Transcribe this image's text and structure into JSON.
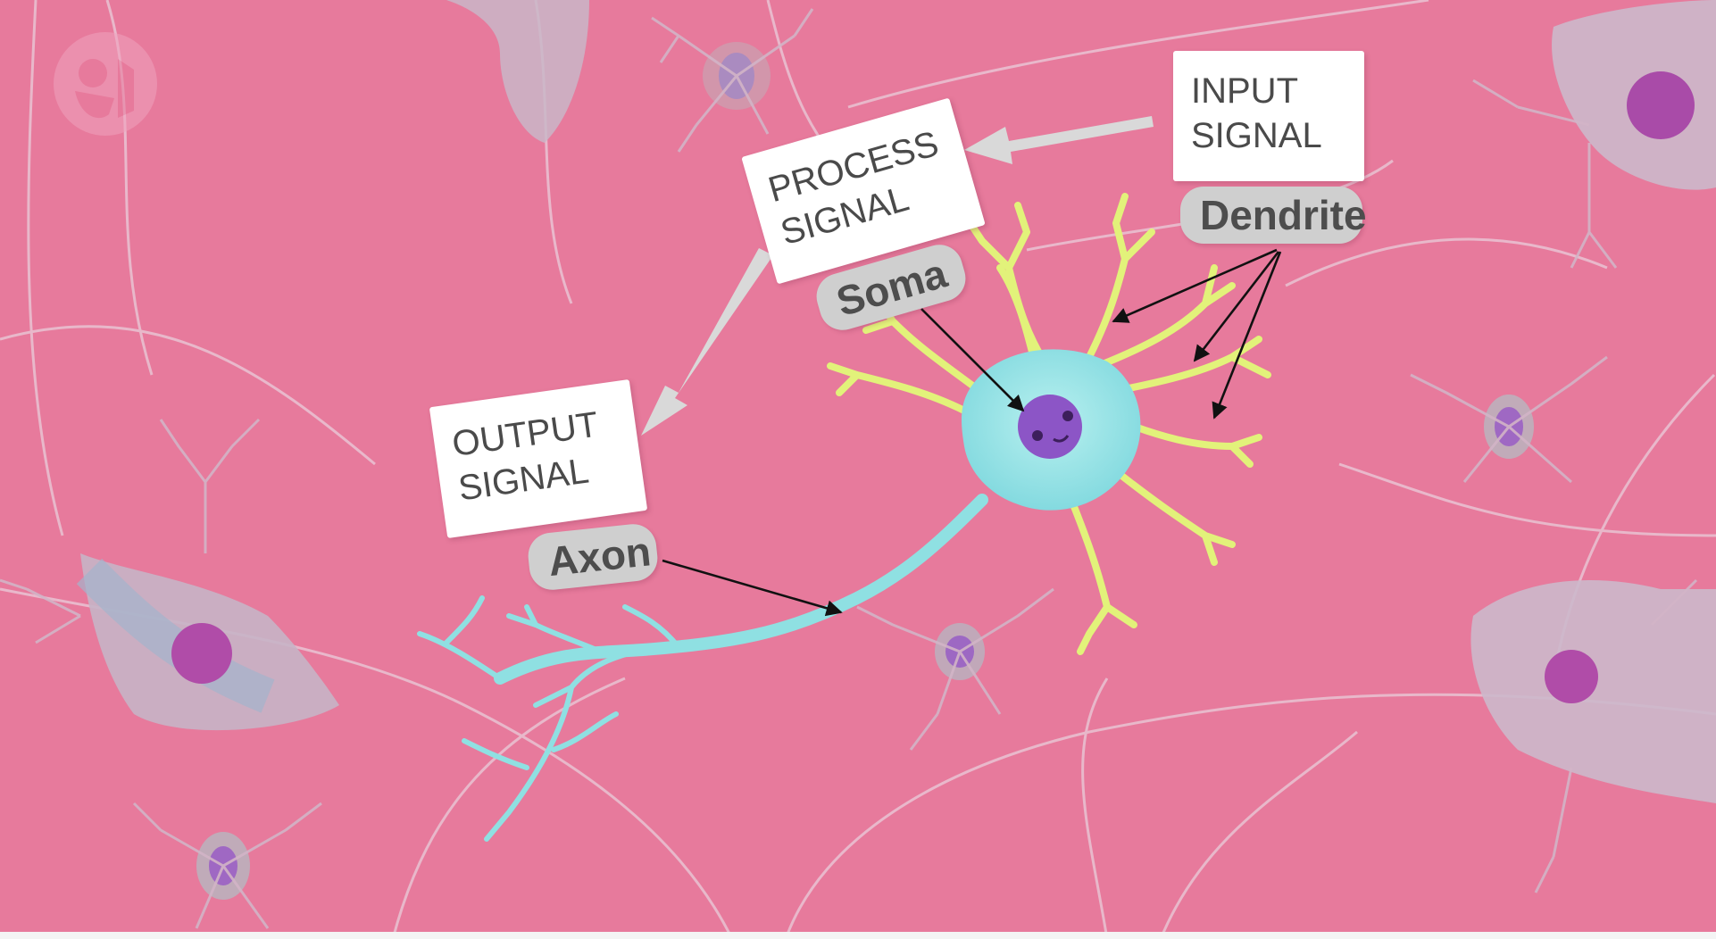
{
  "diagram": {
    "input_card": {
      "text": "INPUT\nSIGNAL"
    },
    "process_card": {
      "text": "PROCESS\nSIGNAL"
    },
    "output_card": {
      "text": "OUTPUT\nSIGNAL"
    },
    "labels": {
      "dendrite": "Dendrite",
      "soma": "Soma",
      "axon": "Axon"
    },
    "colors": {
      "background": "#e77a9c",
      "faint_neuron": "#c9b2c4",
      "neuron_body": "#8fe3e6",
      "dendrite_branches": "#e4f27a",
      "nucleus": "#8e59c6",
      "flow_arrow": "#d9d9d9",
      "pointer_arrow": "#111111"
    },
    "icons": [
      "pbs-logo-icon",
      "flow-arrow-icon",
      "pointer-arrow-icon"
    ]
  }
}
